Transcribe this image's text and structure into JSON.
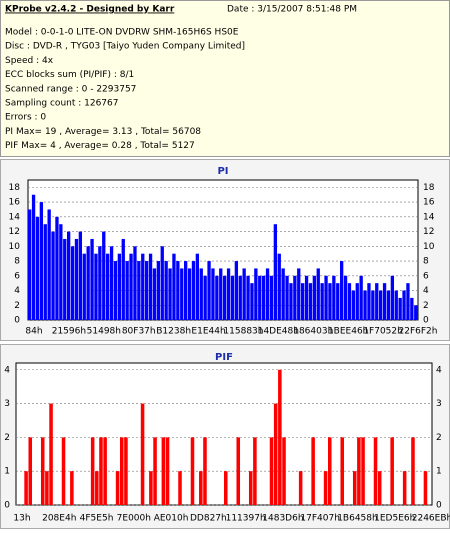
{
  "header": {
    "title": "KProbe v2.4.2 - Designed by Karr",
    "date": "Date : 3/15/2007 8:51:48 PM",
    "lines": [
      "Model : 0-0-1-0 LITE-ON DVDRW SHM-165H6S HS0E",
      "Disc : DVD-R , TYG03 [Taiyo Yuden Company Limited]",
      "Speed : 4x",
      "ECC blocks sum (PI/PIF) : 8/1",
      "Scanned range : 0 - 2293757",
      "Sampling count : 126767",
      "Errors : 0",
      "PI Max= 19 , Average= 3.13 , Total= 56708",
      "PIF Max= 4 , Average= 0.28 , Total= 5127"
    ]
  },
  "chart_data": [
    {
      "type": "bar",
      "title": "PI",
      "color": "#0000ff",
      "grid": true,
      "x_labels": [
        "84h",
        "21596h",
        "51498h",
        "80F37h",
        "B1238h",
        "E1E44h",
        "115883h",
        "14DE48h",
        "186403h",
        "1BEE46h",
        "1F7052h",
        "22F6F2h"
      ],
      "values": [
        15,
        17,
        14,
        16,
        13,
        15,
        12,
        14,
        13,
        11,
        12,
        10,
        11,
        12,
        9,
        10,
        11,
        9,
        10,
        12,
        9,
        10,
        8,
        9,
        11,
        8,
        9,
        10,
        8,
        9,
        8,
        9,
        7,
        8,
        10,
        8,
        7,
        9,
        8,
        7,
        8,
        7,
        8,
        9,
        7,
        6,
        8,
        7,
        6,
        7,
        6,
        7,
        6,
        8,
        6,
        7,
        6,
        5,
        7,
        6,
        6,
        7,
        6,
        13,
        9,
        7,
        6,
        5,
        6,
        7,
        5,
        6,
        5,
        6,
        7,
        5,
        6,
        5,
        6,
        5,
        8,
        6,
        5,
        4,
        5,
        6,
        4,
        5,
        4,
        5,
        4,
        5,
        4,
        6,
        4,
        3,
        4,
        5,
        3,
        2
      ],
      "ylim": [
        0,
        19
      ],
      "yticks": [
        0,
        2,
        4,
        6,
        8,
        10,
        12,
        14,
        16,
        18
      ]
    },
    {
      "type": "bar",
      "title": "PIF",
      "color": "#ff0000",
      "grid": true,
      "x_labels": [
        "13h",
        "208E4h",
        "4F5E5h",
        "7E000h",
        "AE010h",
        "DD827h",
        "111397h",
        "1483D6h",
        "17F407h",
        "1B6458h",
        "1ED5E6h",
        "2246EBh"
      ],
      "values": [
        0,
        0,
        1,
        2,
        0,
        0,
        2,
        1,
        3,
        0,
        0,
        2,
        0,
        1,
        0,
        0,
        0,
        0,
        2,
        1,
        2,
        2,
        0,
        0,
        1,
        2,
        2,
        0,
        0,
        0,
        3,
        0,
        1,
        2,
        0,
        2,
        2,
        0,
        0,
        1,
        0,
        0,
        2,
        0,
        1,
        2,
        0,
        0,
        0,
        0,
        1,
        0,
        0,
        2,
        0,
        0,
        1,
        2,
        0,
        0,
        0,
        2,
        3,
        4,
        2,
        0,
        0,
        0,
        1,
        0,
        0,
        2,
        0,
        0,
        1,
        2,
        0,
        0,
        2,
        0,
        0,
        1,
        2,
        2,
        0,
        0,
        2,
        1,
        0,
        0,
        2,
        0,
        0,
        1,
        0,
        2,
        0,
        0,
        1,
        0
      ],
      "ylim": [
        0,
        4.2
      ],
      "yticks": [
        0,
        1,
        2,
        3,
        4
      ]
    }
  ]
}
